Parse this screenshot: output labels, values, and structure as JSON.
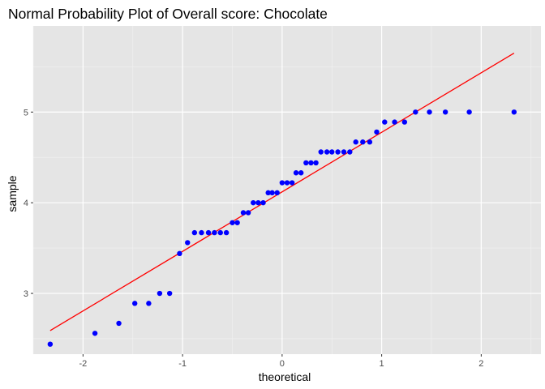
{
  "chart_data": {
    "type": "scatter",
    "title": "Normal Probability Plot of Overall score: Chocolate",
    "xlabel": "theoretical",
    "ylabel": "sample",
    "xlim": [
      -2.5,
      2.6
    ],
    "ylim": [
      2.33,
      5.95
    ],
    "x_ticks": [
      -2,
      -1,
      0,
      1,
      2
    ],
    "y_ticks": [
      3,
      4,
      5
    ],
    "grid": true,
    "point_color": "#0000ff",
    "line_color": "#ff0000",
    "panel_background": "#e5e5e5",
    "reference_line": {
      "x": [
        -2.33,
        2.33
      ],
      "y": [
        2.59,
        5.65
      ]
    },
    "points": {
      "x": [
        -2.33,
        -1.88,
        -1.64,
        -1.48,
        -1.34,
        -1.23,
        -1.13,
        -1.03,
        -0.95,
        -0.88,
        -0.81,
        -0.74,
        -0.68,
        -0.62,
        -0.56,
        -0.5,
        -0.45,
        -0.39,
        -0.34,
        -0.29,
        -0.24,
        -0.19,
        -0.14,
        -0.1,
        -0.05,
        0.0,
        0.05,
        0.1,
        0.14,
        0.19,
        0.24,
        0.29,
        0.34,
        0.39,
        0.45,
        0.5,
        0.56,
        0.62,
        0.68,
        0.74,
        0.81,
        0.88,
        0.95,
        1.03,
        1.13,
        1.23,
        1.34,
        1.48,
        1.64,
        1.88,
        2.33
      ],
      "y": [
        2.44,
        2.56,
        2.67,
        2.89,
        2.89,
        3.0,
        3.0,
        3.44,
        3.56,
        3.67,
        3.67,
        3.67,
        3.67,
        3.67,
        3.67,
        3.78,
        3.78,
        3.89,
        3.89,
        4.0,
        4.0,
        4.0,
        4.11,
        4.11,
        4.11,
        4.22,
        4.22,
        4.22,
        4.33,
        4.33,
        4.44,
        4.44,
        4.44,
        4.56,
        4.56,
        4.56,
        4.56,
        4.56,
        4.56,
        4.67,
        4.67,
        4.67,
        4.78,
        4.89,
        4.89,
        4.89,
        5.0,
        5.0,
        5.0,
        5.0,
        5.0
      ]
    }
  }
}
